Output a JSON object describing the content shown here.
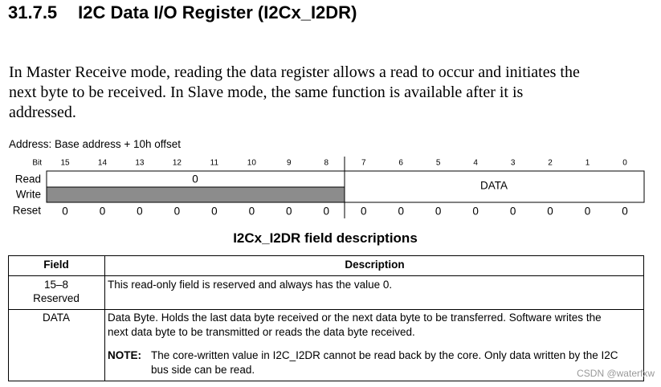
{
  "heading": {
    "number": "31.7.5",
    "title": "I2C Data I/O Register (I2Cx_I2DR)"
  },
  "paragraph": [
    "In Master Receive mode, reading the data register allows a read to occur and initiates the",
    "next byte to be received. In Slave mode, the same function is available after it is",
    "addressed."
  ],
  "register": {
    "address": "Address: Base address + 10h offset",
    "bit_label": "Bit",
    "bits": [
      15,
      14,
      13,
      12,
      11,
      10,
      9,
      8,
      7,
      6,
      5,
      4,
      3,
      2,
      1,
      0
    ],
    "read_label": "Read",
    "write_label": "Write",
    "reset_label": "Reset",
    "upper_read": "0",
    "lower_field": "DATA",
    "reset": [
      0,
      0,
      0,
      0,
      0,
      0,
      0,
      0,
      0,
      0,
      0,
      0,
      0,
      0,
      0,
      0
    ]
  },
  "table": {
    "title": "I2Cx_I2DR field descriptions",
    "headers": [
      "Field",
      "Description"
    ],
    "rows": [
      {
        "field": [
          "15–8",
          "Reserved"
        ],
        "description": [
          "This read-only field is reserved and always has the value 0."
        ]
      },
      {
        "field": [
          "DATA"
        ],
        "description": [
          "Data Byte. Holds the last data byte received or the next data byte to be transferred. Software writes the",
          "next data byte to be transmitted or reads the data byte received."
        ],
        "note_label": "NOTE:",
        "note": [
          "The core-written value in I2C_I2DR cannot be read back by the core. Only data written by the I2C",
          "bus side can be read."
        ]
      }
    ]
  },
  "watermark": "CSDN @waterfxw"
}
